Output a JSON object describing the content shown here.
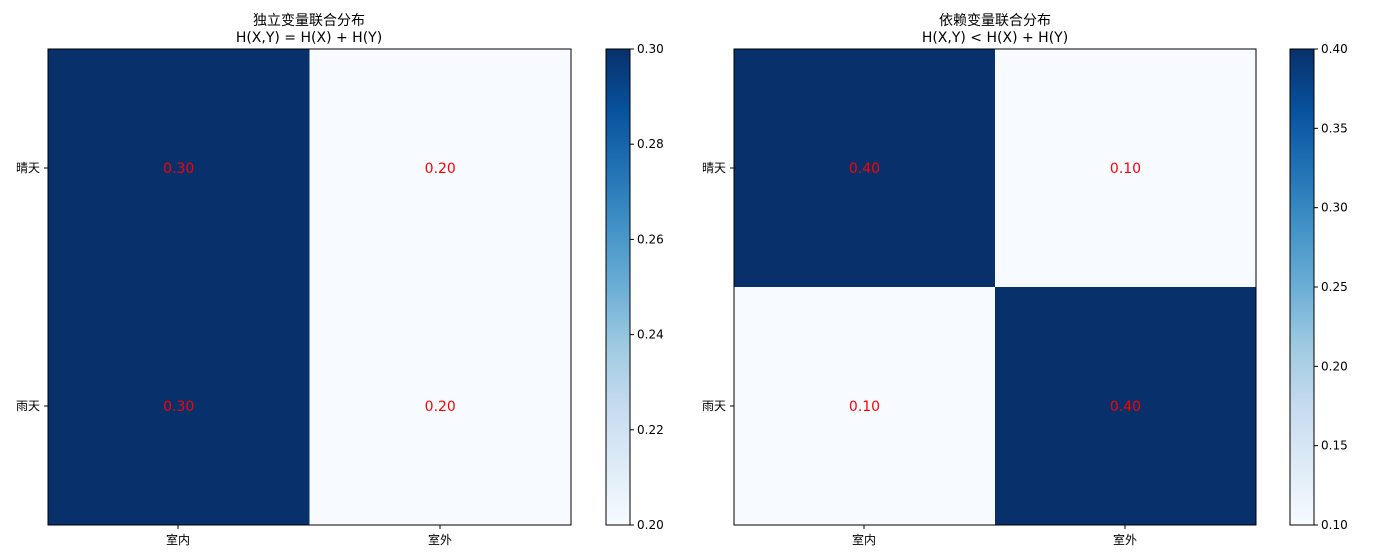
{
  "chart_data": [
    {
      "type": "heatmap",
      "title": "独立变量联合分布",
      "subtitle": "H(X,Y) = H(X) + H(Y)",
      "x_categories": [
        "室内",
        "室外"
      ],
      "y_categories": [
        "晴天",
        "雨天"
      ],
      "values": [
        [
          0.3,
          0.2
        ],
        [
          0.3,
          0.2
        ]
      ],
      "cell_labels": [
        [
          "0.30",
          "0.20"
        ],
        [
          "0.30",
          "0.20"
        ]
      ],
      "colorbar": {
        "range": [
          0.2,
          0.3
        ],
        "ticks": [
          "0.20",
          "0.22",
          "0.24",
          "0.26",
          "0.28",
          "0.30"
        ]
      },
      "colormap": "Blues",
      "annotation_color": "#ff0000"
    },
    {
      "type": "heatmap",
      "title": "依赖变量联合分布",
      "subtitle": "H(X,Y) < H(X) + H(Y)",
      "x_categories": [
        "室内",
        "室外"
      ],
      "y_categories": [
        "晴天",
        "雨天"
      ],
      "values": [
        [
          0.4,
          0.1
        ],
        [
          0.1,
          0.4
        ]
      ],
      "cell_labels": [
        [
          "0.40",
          "0.10"
        ],
        [
          "0.10",
          "0.40"
        ]
      ],
      "colorbar": {
        "range": [
          0.1,
          0.4
        ],
        "ticks": [
          "0.10",
          "0.15",
          "0.20",
          "0.25",
          "0.30",
          "0.35",
          "0.40"
        ]
      },
      "colormap": "Blues",
      "annotation_color": "#ff0000"
    }
  ],
  "colors": {
    "low": "#f7fbff",
    "high": "#08306b"
  }
}
